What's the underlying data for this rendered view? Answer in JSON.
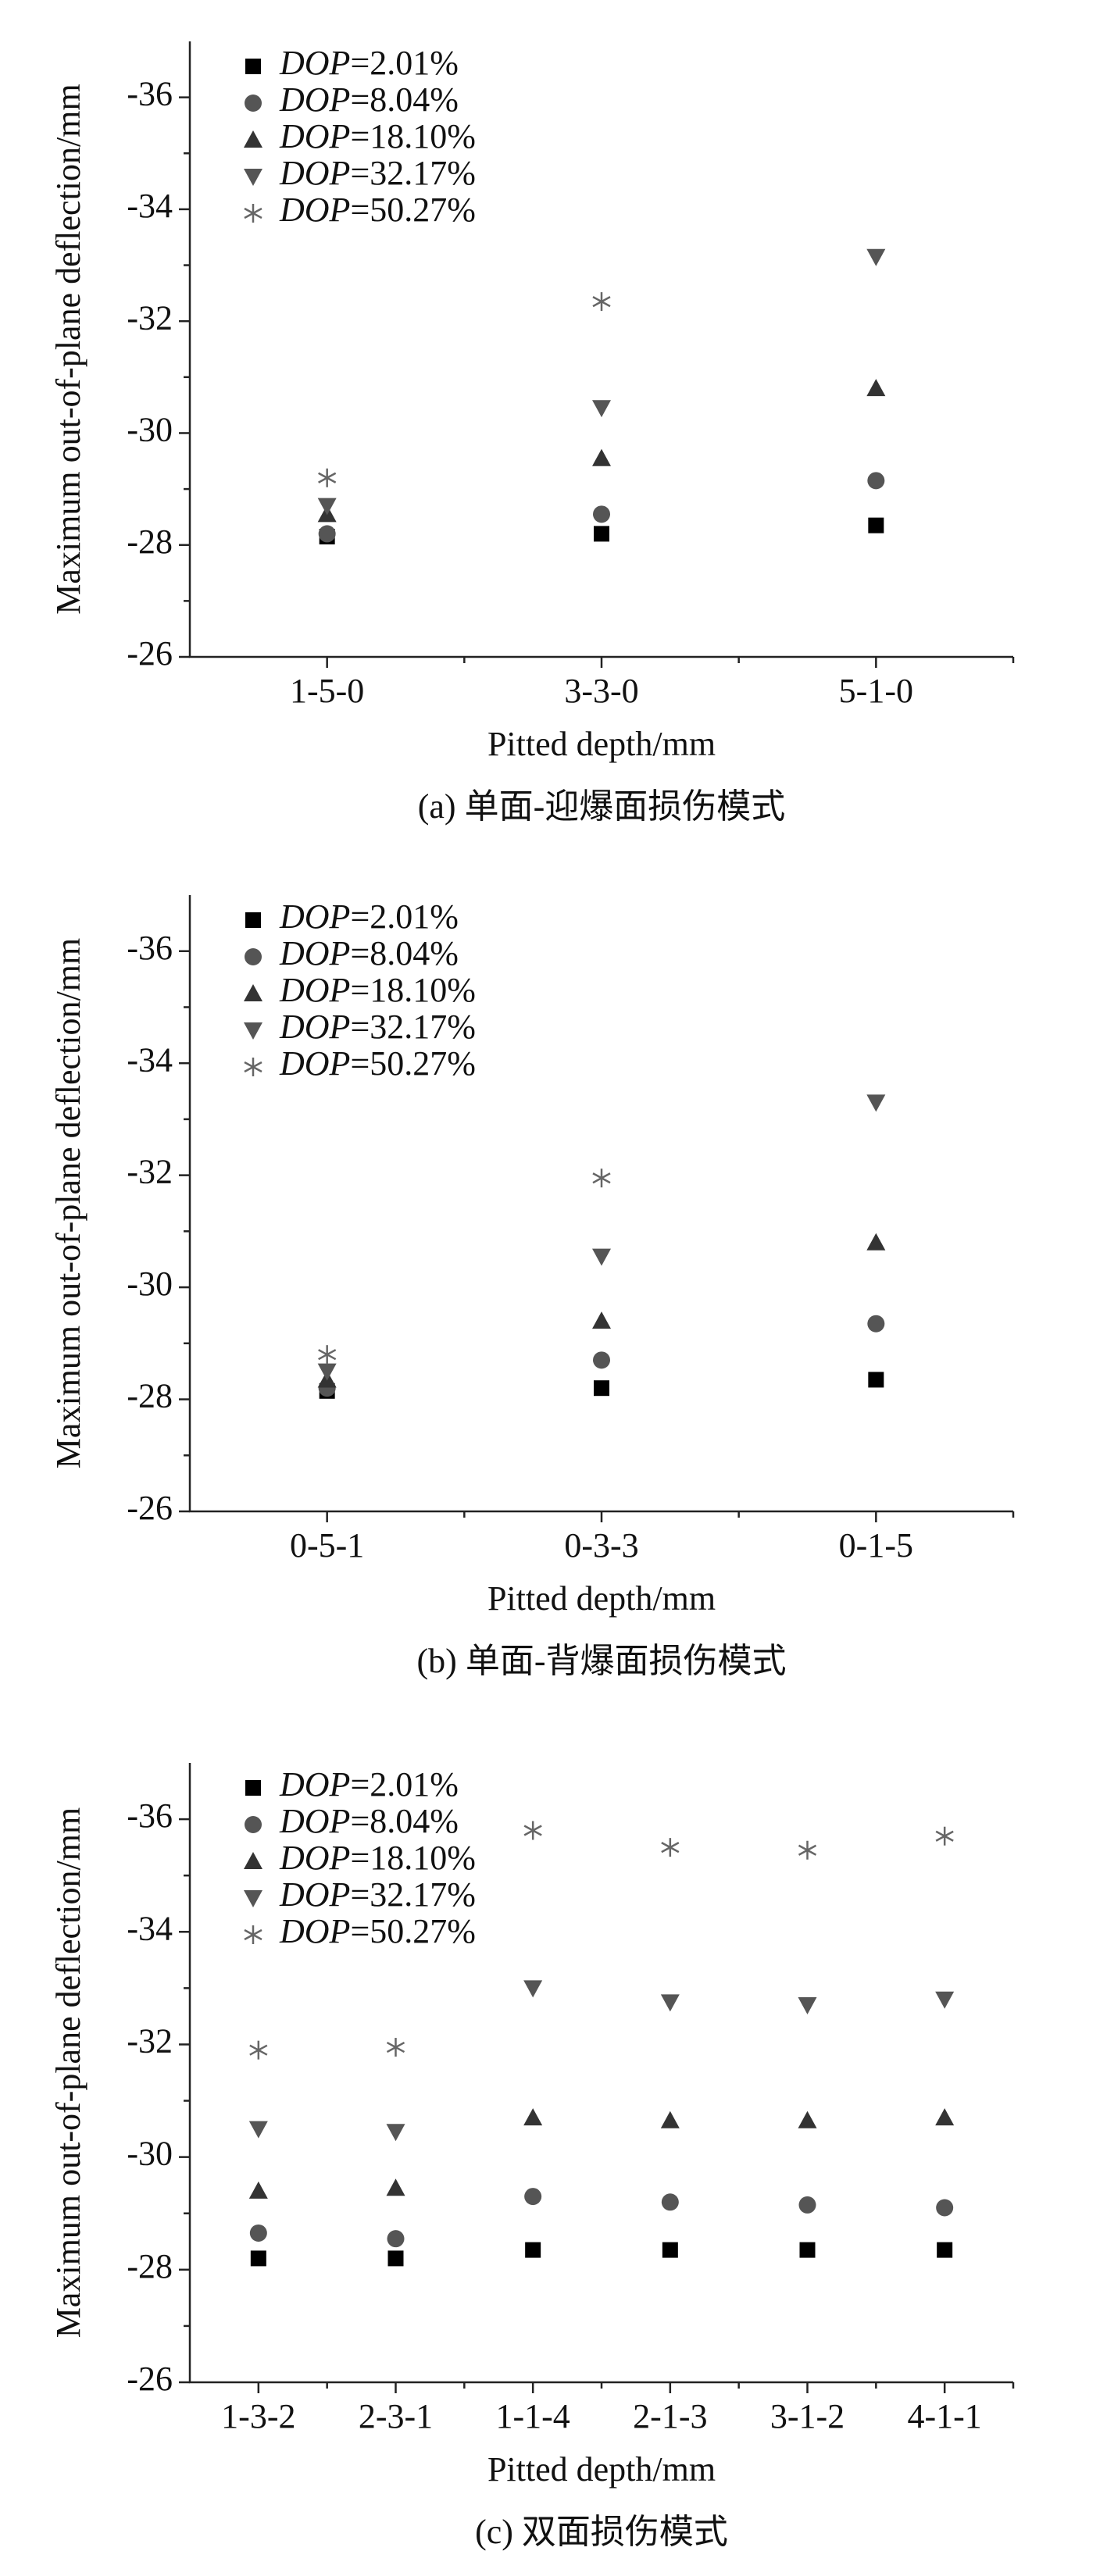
{
  "chart_data": [
    {
      "type": "scatter",
      "caption": "(a) 单面-迎爆面损伤模式",
      "xlabel": "Pitted depth/mm",
      "ylabel": "Maximum out-of-plane deflection/mm",
      "categories": [
        "1-5-0",
        "3-3-0",
        "5-1-0"
      ],
      "ylim": [
        -26,
        -37
      ],
      "yticks": [
        -26,
        -28,
        -30,
        -32,
        -34,
        -36
      ],
      "series": [
        {
          "name": "DOP=2.01%",
          "color": "#000000",
          "marker": "square",
          "values": [
            -28.15,
            -28.2,
            -28.35
          ]
        },
        {
          "name": "DOP=8.04%",
          "color": "#555555",
          "marker": "circle",
          "values": [
            -28.2,
            -28.55,
            -29.15
          ]
        },
        {
          "name": "DOP=18.10%",
          "color": "#333333",
          "marker": "triangle-up",
          "values": [
            -28.55,
            -29.55,
            -30.8
          ]
        },
        {
          "name": "DOP=32.17%",
          "color": "#555555",
          "marker": "triangle-down",
          "values": [
            -28.7,
            -30.45,
            -33.15
          ]
        },
        {
          "name": "DOP=50.27%",
          "color": "#666666",
          "marker": "asterisk",
          "values": [
            -29.2,
            -32.35,
            null
          ]
        }
      ]
    },
    {
      "type": "scatter",
      "caption": "(b) 单面-背爆面损伤模式",
      "xlabel": "Pitted depth/mm",
      "ylabel": "Maximum out-of-plane deflection/mm",
      "categories": [
        "0-5-1",
        "0-3-3",
        "0-1-5"
      ],
      "ylim": [
        -26,
        -37
      ],
      "yticks": [
        -26,
        -28,
        -30,
        -32,
        -34,
        -36
      ],
      "series": [
        {
          "name": "DOP=2.01%",
          "color": "#000000",
          "marker": "square",
          "values": [
            -28.15,
            -28.2,
            -28.35
          ]
        },
        {
          "name": "DOP=8.04%",
          "color": "#555555",
          "marker": "circle",
          "values": [
            -28.2,
            -28.7,
            -29.35
          ]
        },
        {
          "name": "DOP=18.10%",
          "color": "#333333",
          "marker": "triangle-up",
          "values": [
            -28.35,
            -29.4,
            -30.8
          ]
        },
        {
          "name": "DOP=32.17%",
          "color": "#555555",
          "marker": "triangle-down",
          "values": [
            -28.5,
            -30.55,
            -33.3
          ]
        },
        {
          "name": "DOP=50.27%",
          "color": "#666666",
          "marker": "asterisk",
          "values": [
            -28.8,
            -31.95,
            null
          ]
        }
      ]
    },
    {
      "type": "scatter",
      "caption": "(c) 双面损伤模式",
      "xlabel": "Pitted depth/mm",
      "ylabel": "Maximum out-of-plane deflection/mm",
      "categories": [
        "1-3-2",
        "2-3-1",
        "1-1-4",
        "2-1-3",
        "3-1-2",
        "4-1-1"
      ],
      "ylim": [
        -26,
        -37
      ],
      "yticks": [
        -26,
        -28,
        -30,
        -32,
        -34,
        -36
      ],
      "series": [
        {
          "name": "DOP=2.01%",
          "color": "#000000",
          "marker": "square",
          "values": [
            -28.2,
            -28.2,
            -28.35,
            -28.35,
            -28.35,
            -28.35
          ]
        },
        {
          "name": "DOP=8.04%",
          "color": "#555555",
          "marker": "circle",
          "values": [
            -28.65,
            -28.55,
            -29.3,
            -29.2,
            -29.15,
            -29.1
          ]
        },
        {
          "name": "DOP=18.10%",
          "color": "#333333",
          "marker": "triangle-up",
          "values": [
            -29.4,
            -29.45,
            -30.7,
            -30.65,
            -30.65,
            -30.7
          ]
        },
        {
          "name": "DOP=32.17%",
          "color": "#555555",
          "marker": "triangle-down",
          "values": [
            -30.5,
            -30.45,
            -33.0,
            -32.75,
            -32.7,
            -32.8
          ]
        },
        {
          "name": "DOP=50.27%",
          "color": "#666666",
          "marker": "asterisk",
          "values": [
            -31.9,
            -31.95,
            -35.8,
            -35.5,
            -35.45,
            -35.7
          ]
        }
      ]
    }
  ]
}
